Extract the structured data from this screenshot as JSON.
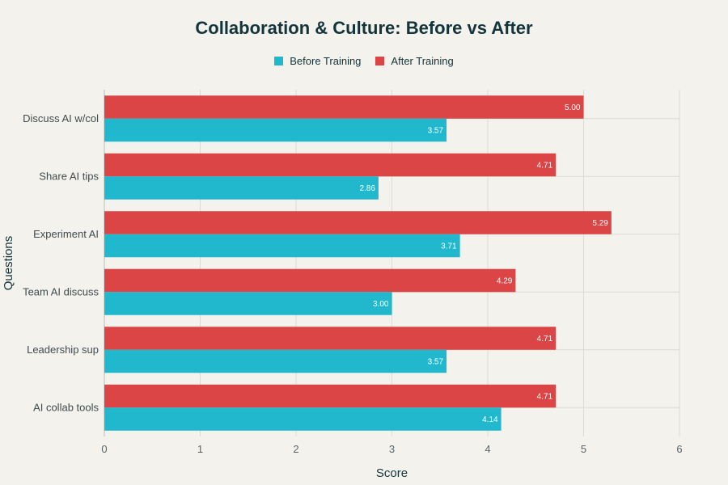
{
  "chart_data": {
    "type": "bar",
    "orientation": "horizontal",
    "title": "Collaboration & Culture: Before vs After",
    "xlabel": "Score",
    "ylabel": "Questions",
    "xlim": [
      0,
      6
    ],
    "xticks": [
      0,
      1,
      2,
      3,
      4,
      5,
      6
    ],
    "grid": true,
    "legend_position": "top-center",
    "categories": [
      "Discuss AI w/col",
      "Share AI tips",
      "Experiment AI",
      "Team AI discuss",
      "Leadership sup",
      "AI collab tools"
    ],
    "series": [
      {
        "name": "Before Training",
        "color": "#21b8cd",
        "values": [
          3.57,
          2.86,
          3.71,
          3.0,
          3.57,
          4.14
        ],
        "labels": [
          "3.57",
          "2.86",
          "3.71",
          "3.00",
          "3.57",
          "4.14"
        ]
      },
      {
        "name": "After Training",
        "color": "#db4545",
        "values": [
          5.0,
          4.71,
          5.29,
          4.29,
          4.71,
          4.71
        ],
        "labels": [
          "5.00",
          "4.71",
          "5.29",
          "4.29",
          "4.71",
          "4.71"
        ]
      }
    ]
  }
}
